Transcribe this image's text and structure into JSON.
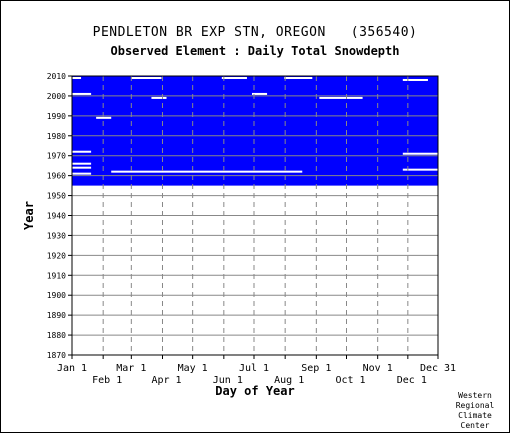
{
  "chart_data": {
    "type": "heatmap",
    "title": "PENDLETON BR EXP STN, OREGON   (356540)",
    "subtitle": "Observed Element : Daily Total Snowdepth",
    "xlabel": "Day of Year",
    "ylabel": "Year",
    "ylim": [
      1870,
      2010
    ],
    "yticks": [
      1870,
      1880,
      1890,
      1900,
      1910,
      1920,
      1930,
      1940,
      1950,
      1960,
      1970,
      1980,
      1990,
      2000,
      2010
    ],
    "xlim_day": [
      1,
      365
    ],
    "xticks_top_row": [
      {
        "label": "Jan 1",
        "day": 1
      },
      {
        "label": "Mar 1",
        "day": 60
      },
      {
        "label": "May 1",
        "day": 121
      },
      {
        "label": "Jul 1",
        "day": 182
      },
      {
        "label": "Sep 1",
        "day": 244
      },
      {
        "label": "Nov 1",
        "day": 305
      },
      {
        "label": "Dec 31",
        "day": 365
      }
    ],
    "xticks_bottom_row": [
      {
        "label": "Feb 1",
        "day": 32
      },
      {
        "label": "Apr 1",
        "day": 91
      },
      {
        "label": "Jun 1",
        "day": 152
      },
      {
        "label": "Aug 1",
        "day": 213
      },
      {
        "label": "Oct 1",
        "day": 274
      },
      {
        "label": "Dec 1",
        "day": 335
      }
    ],
    "coverage": {
      "start_year": 1955,
      "end_year": 2010,
      "color": "#0000ff"
    },
    "gaps": [
      {
        "year": 1961,
        "day_start": 1,
        "day_end": 20
      },
      {
        "year": 1962,
        "day_start": 40,
        "day_end": 230
      },
      {
        "year": 1963,
        "day_start": 330,
        "day_end": 365
      },
      {
        "year": 1964,
        "day_start": 1,
        "day_end": 20
      },
      {
        "year": 1966,
        "day_start": 1,
        "day_end": 20
      },
      {
        "year": 1971,
        "day_start": 330,
        "day_end": 365
      },
      {
        "year": 1972,
        "day_start": 1,
        "day_end": 20
      },
      {
        "year": 1989,
        "day_start": 25,
        "day_end": 40
      },
      {
        "year": 1999,
        "day_start": 80,
        "day_end": 95
      },
      {
        "year": 1999,
        "day_start": 247,
        "day_end": 290
      },
      {
        "year": 2001,
        "day_start": 1,
        "day_end": 20
      },
      {
        "year": 2001,
        "day_start": 180,
        "day_end": 195
      },
      {
        "year": 2008,
        "day_start": 330,
        "day_end": 355
      },
      {
        "year": 2009,
        "day_start": 1,
        "day_end": 10
      },
      {
        "year": 2009,
        "day_start": 60,
        "day_end": 90
      },
      {
        "year": 2009,
        "day_start": 150,
        "day_end": 175
      },
      {
        "year": 2009,
        "day_start": 212,
        "day_end": 240
      }
    ],
    "grid": true,
    "credit": [
      "Western",
      "Regional",
      "Climate",
      "Center"
    ]
  }
}
